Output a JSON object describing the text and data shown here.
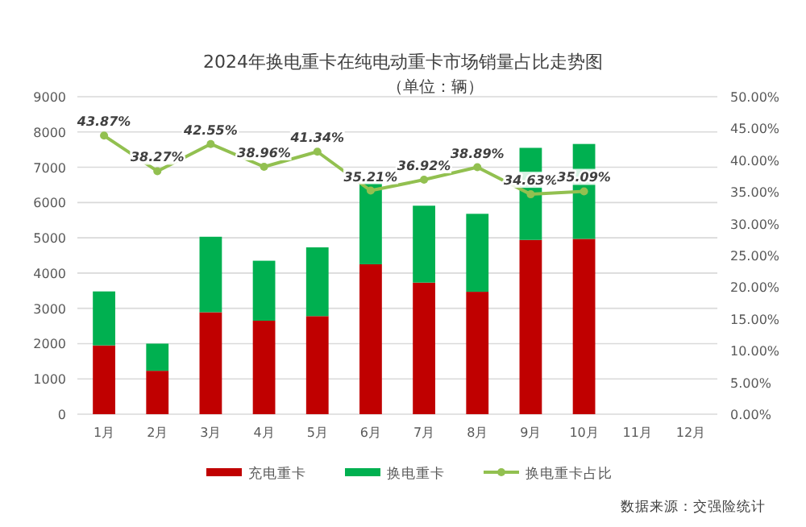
{
  "chart_data": {
    "type": "bar",
    "title": "2024年换电重卡在纯电动重卡市场销量占比走势图",
    "subtitle": "（单位：辆）",
    "categories": [
      "1月",
      "2月",
      "3月",
      "4月",
      "5月",
      "6月",
      "7月",
      "8月",
      "9月",
      "10月",
      "11月",
      "12月"
    ],
    "stacked": true,
    "series": [
      {
        "name": "充电重卡",
        "color": "#c00000",
        "values": [
          1950,
          1230,
          2890,
          2650,
          2780,
          4250,
          3730,
          3470,
          4940,
          4970,
          null,
          null
        ]
      },
      {
        "name": "换电重卡",
        "color": "#00b050",
        "values": [
          1530,
          770,
          2140,
          1700,
          1950,
          2310,
          2180,
          2210,
          2610,
          2690,
          null,
          null
        ]
      },
      {
        "name": "换电重卡占比",
        "type": "line",
        "axis": "y2",
        "color": "#92c050",
        "marker": "circle",
        "values": [
          43.87,
          38.27,
          42.55,
          38.96,
          41.34,
          35.21,
          36.92,
          38.89,
          34.63,
          35.09,
          null,
          null
        ],
        "value_labels": [
          "43.87%",
          "38.27%",
          "42.55%",
          "38.96%",
          "41.34%",
          "35.21%",
          "36.92%",
          "38.89%",
          "34.63%",
          "35.09%",
          null,
          null
        ]
      }
    ],
    "ylim": [
      0,
      9000
    ],
    "yticks": [
      0,
      1000,
      2000,
      3000,
      4000,
      5000,
      6000,
      7000,
      8000,
      9000
    ],
    "y2lim": [
      0,
      50
    ],
    "y2ticks": [
      {
        "value": 0,
        "label": "0.00%"
      },
      {
        "value": 5,
        "label": "5.00%"
      },
      {
        "value": 10,
        "label": "10.00%"
      },
      {
        "value": 15,
        "label": "15.00%"
      },
      {
        "value": 20,
        "label": "20.00%"
      },
      {
        "value": 25,
        "label": "25.00%"
      },
      {
        "value": 30,
        "label": "30.00%"
      },
      {
        "value": 35,
        "label": "35.00%"
      },
      {
        "value": 40,
        "label": "40.00%"
      },
      {
        "value": 45,
        "label": "45.00%"
      },
      {
        "value": 50,
        "label": "50.00%"
      }
    ],
    "grid": "y",
    "legend": "bottom",
    "annotations": [
      "数据来源：交强险统计"
    ]
  }
}
